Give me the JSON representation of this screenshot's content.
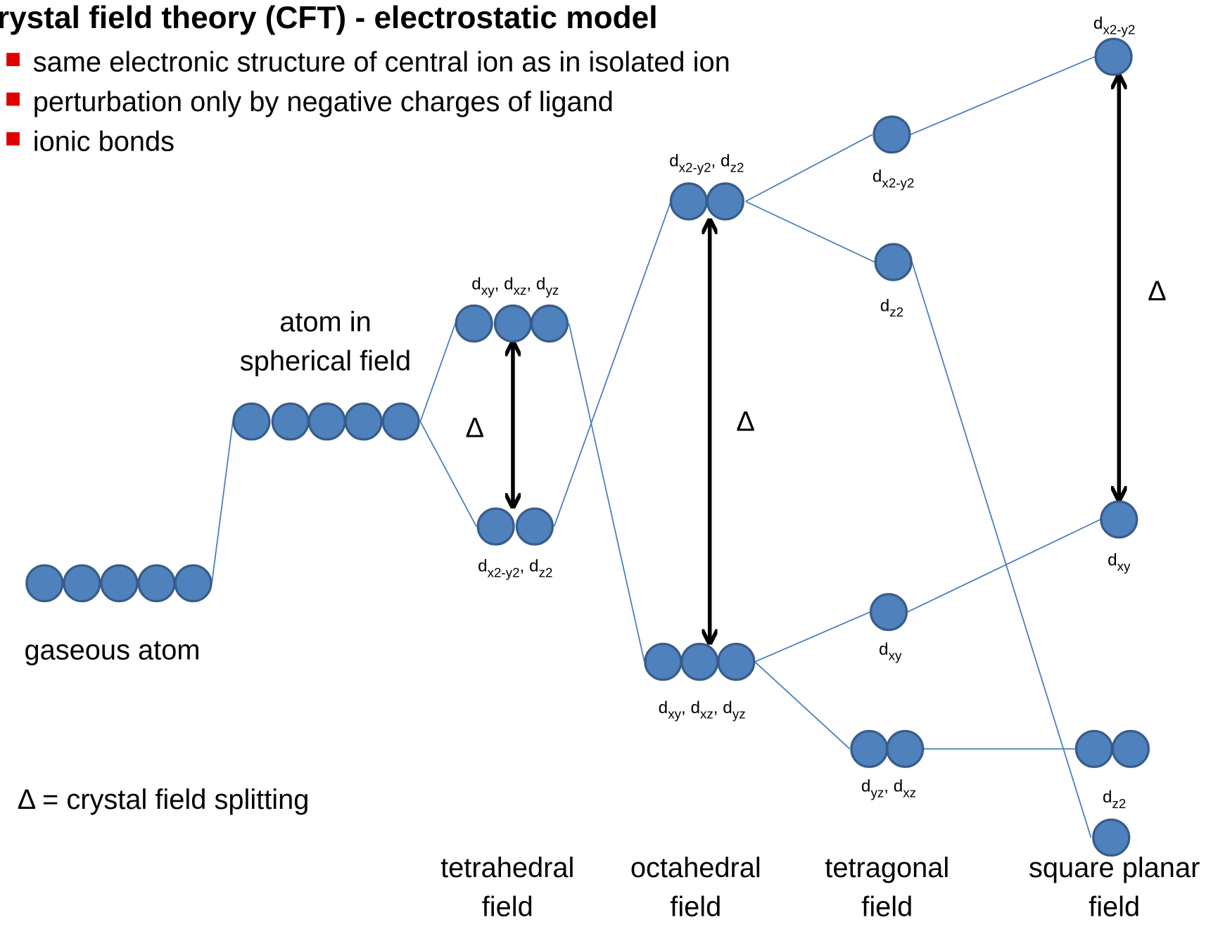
{
  "title": "rystal field theory (CFT) - electrostatic model",
  "bullets": [
    "same electronic structure of central ion as in isolated ion",
    "perturbation only by negative charges of ligand",
    "ionic bonds"
  ],
  "fields": [
    [
      "gaseous atom"
    ],
    [
      "atom in",
      "spherical field"
    ],
    [
      "tetrahedral",
      "field"
    ],
    [
      "octahedral",
      "field"
    ],
    [
      "tetragonal",
      "field"
    ],
    [
      "square planar",
      "field"
    ]
  ],
  "levels": [
    [
      [
        "d",
        "xy"
      ],
      [
        ", d",
        "xz"
      ],
      [
        ", d",
        "yz"
      ]
    ],
    [
      [
        "d",
        "x2-y2"
      ],
      [
        ", d",
        "z2"
      ]
    ],
    [
      [
        "d",
        "x2-y2"
      ],
      [
        ", d",
        "z2"
      ]
    ],
    [
      [
        "d",
        "xy"
      ],
      [
        ", d",
        "xz"
      ],
      [
        ", d",
        "yz"
      ]
    ],
    [
      [
        "d",
        "x2-y2"
      ]
    ],
    [
      [
        "d",
        "z2"
      ]
    ],
    [
      [
        "d",
        "xy"
      ]
    ],
    [
      [
        "d",
        "yz"
      ],
      [
        ", d",
        "xz"
      ]
    ],
    [
      [
        "d",
        "x2-y2"
      ]
    ],
    [
      [
        "d",
        "xy"
      ]
    ],
    [
      [
        "d",
        "z2"
      ]
    ]
  ],
  "delta": [
    "Δ",
    "Δ",
    "Δ"
  ],
  "legend": "Δ = crystal field splitting"
}
